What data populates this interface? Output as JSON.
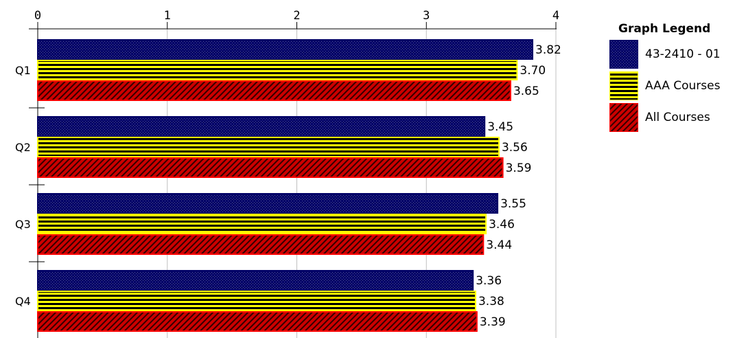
{
  "chart_data": {
    "type": "bar",
    "orientation": "horizontal",
    "categories": [
      "Q1",
      "Q2",
      "Q3",
      "Q4"
    ],
    "series": [
      {
        "name": "43-2410 - 01",
        "values": [
          3.82,
          3.45,
          3.55,
          3.36
        ],
        "value_labels": [
          "3.82",
          "3.45",
          "3.55",
          "3.36"
        ],
        "pattern": "crosshatch",
        "color": "#000066"
      },
      {
        "name": "AAA Courses",
        "values": [
          3.7,
          3.56,
          3.46,
          3.38
        ],
        "value_labels": [
          "3.70",
          "3.56",
          "3.46",
          "3.38"
        ],
        "pattern": "horizontal-stripes",
        "color": "#ffff00"
      },
      {
        "name": "All Courses",
        "values": [
          3.65,
          3.59,
          3.44,
          3.39
        ],
        "value_labels": [
          "3.65",
          "3.59",
          "3.44",
          "3.39"
        ],
        "pattern": "diagonal-stripes",
        "color": "#cc0000"
      }
    ],
    "x_ticks": [
      "0",
      "1",
      "2",
      "3",
      "4"
    ],
    "xlim": [
      0,
      4
    ],
    "axis_position": "top",
    "grid": true,
    "legend": {
      "title": "Graph Legend",
      "position": "right"
    }
  }
}
